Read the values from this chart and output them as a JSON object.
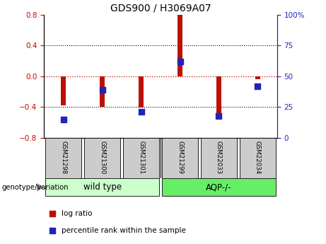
{
  "title": "GDS900 / H3069A07",
  "samples": [
    "GSM21298",
    "GSM21300",
    "GSM21301",
    "GSM21299",
    "GSM22033",
    "GSM22034"
  ],
  "log_ratio": [
    -0.38,
    -0.4,
    -0.41,
    0.8,
    -0.52,
    -0.04
  ],
  "percentile_rank": [
    15,
    39,
    21,
    62,
    18,
    42
  ],
  "groups": [
    {
      "label": "wild type",
      "start": 0,
      "end": 3,
      "color": "#ccffcc"
    },
    {
      "label": "AQP-/-",
      "start": 3,
      "end": 6,
      "color": "#66ee66"
    }
  ],
  "ylim_left": [
    -0.8,
    0.8
  ],
  "ylim_right": [
    0,
    100
  ],
  "yticks_left": [
    -0.8,
    -0.4,
    0,
    0.4,
    0.8
  ],
  "yticks_right": [
    0,
    25,
    50,
    75,
    100
  ],
  "bar_color": "#bb1100",
  "dot_color": "#2222bb",
  "zero_line_color": "#cc0000",
  "grid_color": "black",
  "left_axis_color": "#cc0000",
  "right_axis_color": "#2222bb",
  "legend_log_ratio": "log ratio",
  "legend_percentile": "percentile rank within the sample",
  "genotype_label": "genotype/variation",
  "bar_width": 0.12
}
